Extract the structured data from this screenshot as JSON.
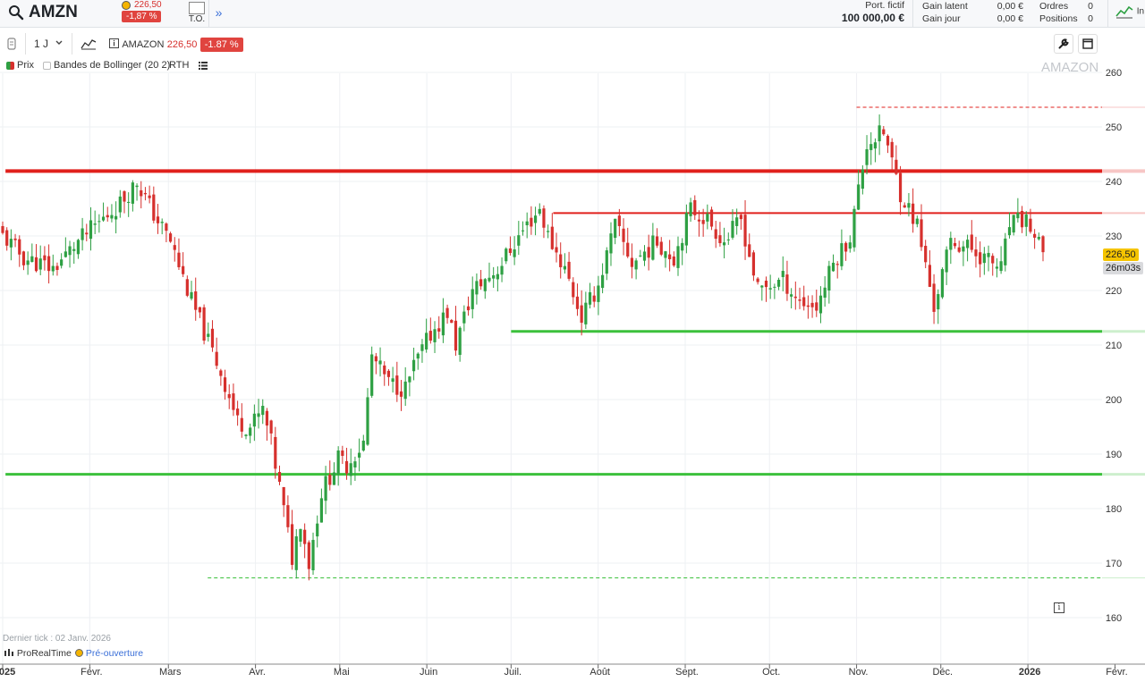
{
  "header": {
    "ticker": "AMZN",
    "quote_price": "226,50",
    "quote_pct": "-1,87 %",
    "to_label": "T.O.",
    "expand": "»",
    "port_label": "Port. fictif",
    "port_value": "100 000,00 €",
    "gain_latent_label": "Gain latent",
    "gain_latent_value": "0,00 €",
    "gain_jour_label": "Gain jour",
    "gain_jour_value": "0,00 €",
    "ordres_label": "Ordres",
    "ordres_value": "0",
    "positions_label": "Positions",
    "positions_value": "0",
    "im_label": "In"
  },
  "toolbar": {
    "interval": "1 J",
    "name": "AMAZON",
    "price": "226,50",
    "pct": "-1.87 %"
  },
  "legend": {
    "prix": "Prix",
    "bollinger": "Bandes de Bollinger (20 2)",
    "rth": "RTH"
  },
  "watermark": "AMAZON",
  "footer": {
    "last_tick": "Dernier tick : 02 Janv. 2026",
    "brand": "ProRealTime",
    "session": "Pré-ouverture"
  },
  "price_tags": {
    "last": "226,50",
    "countdown": "26m03s"
  },
  "colors": {
    "up": "#2ea043",
    "down": "#d6302d",
    "last_tag": "#f5c400",
    "countdown_tag": "#d9dadd"
  },
  "chart_data": {
    "type": "candlestick",
    "y_ticks": [
      160,
      170,
      180,
      190,
      200,
      210,
      220,
      230,
      240,
      250,
      260
    ],
    "ylim": [
      157.6,
      262.9
    ],
    "x_labels": [
      "2025",
      "Févr.",
      "Mars",
      "Avr.",
      "Mai",
      "Juin",
      "Juil.",
      "Août",
      "Sept.",
      "Oct.",
      "Nov.",
      "Déc.",
      "2026",
      "Févr."
    ],
    "anchors": [
      [
        0,
        230
      ],
      [
        5,
        226
      ],
      [
        12,
        224
      ],
      [
        18,
        229
      ],
      [
        28,
        236
      ],
      [
        32,
        240
      ],
      [
        36,
        234
      ],
      [
        40,
        229
      ],
      [
        45,
        218
      ],
      [
        52,
        205
      ],
      [
        56,
        196
      ],
      [
        59,
        195
      ],
      [
        62,
        198
      ],
      [
        64,
        192
      ],
      [
        66,
        184
      ],
      [
        69,
        171
      ],
      [
        71,
        178
      ],
      [
        73,
        170
      ],
      [
        76,
        183
      ],
      [
        80,
        189
      ],
      [
        82,
        188
      ],
      [
        86,
        192
      ],
      [
        88,
        208
      ],
      [
        92,
        203
      ],
      [
        96,
        202
      ],
      [
        98,
        206
      ],
      [
        102,
        212
      ],
      [
        106,
        216
      ],
      [
        108,
        210
      ],
      [
        112,
        220
      ],
      [
        118,
        224
      ],
      [
        124,
        231
      ],
      [
        128,
        235
      ],
      [
        130,
        230
      ],
      [
        134,
        224
      ],
      [
        138,
        215
      ],
      [
        142,
        221
      ],
      [
        146,
        232
      ],
      [
        150,
        225
      ],
      [
        156,
        229
      ],
      [
        160,
        226
      ],
      [
        164,
        235
      ],
      [
        168,
        233
      ],
      [
        172,
        229
      ],
      [
        176,
        233
      ],
      [
        180,
        220
      ],
      [
        186,
        222
      ],
      [
        190,
        218
      ],
      [
        194,
        217
      ],
      [
        198,
        225
      ],
      [
        202,
        230
      ],
      [
        206,
        247
      ],
      [
        210,
        249
      ],
      [
        214,
        238
      ],
      [
        218,
        232
      ],
      [
        222,
        217
      ],
      [
        226,
        229
      ],
      [
        230,
        228
      ],
      [
        234,
        226
      ],
      [
        238,
        224
      ],
      [
        240,
        232
      ],
      [
        244,
        233
      ],
      [
        248,
        226.5
      ]
    ],
    "levels": [
      {
        "price": 241.9,
        "color": "#e0201c",
        "style": "solid",
        "width": 4,
        "start_date": "2025-01-02"
      },
      {
        "price": 234.2,
        "color": "#e0201c",
        "style": "solid",
        "width": 2,
        "start_date": "2025-07-16"
      },
      {
        "price": 253.6,
        "color": "#e0201c",
        "style": "dashed",
        "width": 1,
        "start_date": "2025-11-01"
      },
      {
        "price": 212.5,
        "color": "#3cc13c",
        "style": "solid",
        "width": 3,
        "start_date": "2025-07-01"
      },
      {
        "price": 186.3,
        "color": "#3cc13c",
        "style": "solid",
        "width": 3,
        "start_date": "2025-01-02"
      },
      {
        "price": 167.3,
        "color": "#3cc13c",
        "style": "dashed",
        "width": 1,
        "start_date": "2025-03-15"
      }
    ]
  }
}
